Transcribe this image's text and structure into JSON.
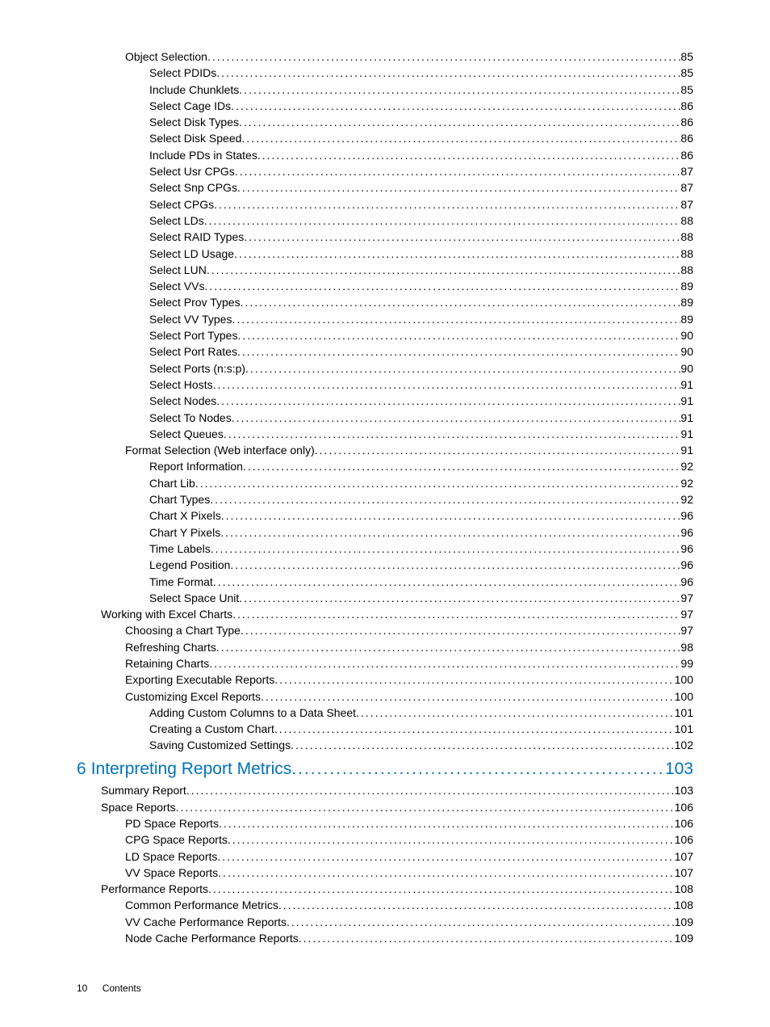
{
  "colors": {
    "link_color": "#0073ba",
    "text_color": "#000000",
    "background": "#ffffff"
  },
  "typography": {
    "body_font": "Arial, Helvetica, sans-serif",
    "entry_fontsize": 14,
    "chapter_fontsize": 21,
    "footer_fontsize": 12,
    "line_height": 1.45,
    "weight": 300
  },
  "toc": {
    "entries": [
      {
        "label": "Object Selection",
        "page": "85",
        "indent": 2,
        "type": "item"
      },
      {
        "label": "Select PDIDs",
        "page": "85",
        "indent": 3,
        "type": "item"
      },
      {
        "label": "Include Chunklets",
        "page": "85",
        "indent": 3,
        "type": "item"
      },
      {
        "label": "Select Cage IDs",
        "page": "86",
        "indent": 3,
        "type": "item"
      },
      {
        "label": "Select Disk Types",
        "page": "86",
        "indent": 3,
        "type": "item"
      },
      {
        "label": "Select Disk Speed",
        "page": "86",
        "indent": 3,
        "type": "item"
      },
      {
        "label": "Include PDs in States",
        "page": "86",
        "indent": 3,
        "type": "item"
      },
      {
        "label": "Select Usr CPGs",
        "page": "87",
        "indent": 3,
        "type": "item"
      },
      {
        "label": "Select Snp CPGs",
        "page": "87",
        "indent": 3,
        "type": "item"
      },
      {
        "label": "Select CPGs",
        "page": "87",
        "indent": 3,
        "type": "item"
      },
      {
        "label": "Select LDs",
        "page": "88",
        "indent": 3,
        "type": "item"
      },
      {
        "label": "Select RAID Types",
        "page": "88",
        "indent": 3,
        "type": "item"
      },
      {
        "label": "Select LD Usage",
        "page": "88",
        "indent": 3,
        "type": "item"
      },
      {
        "label": "Select LUN",
        "page": "88",
        "indent": 3,
        "type": "item"
      },
      {
        "label": "Select VVs",
        "page": "89",
        "indent": 3,
        "type": "item"
      },
      {
        "label": "Select Prov Types",
        "page": "89",
        "indent": 3,
        "type": "item"
      },
      {
        "label": "Select VV Types",
        "page": "89",
        "indent": 3,
        "type": "item"
      },
      {
        "label": "Select Port Types",
        "page": "90",
        "indent": 3,
        "type": "item"
      },
      {
        "label": "Select Port Rates",
        "page": "90",
        "indent": 3,
        "type": "item"
      },
      {
        "label": "Select Ports (n:s:p)",
        "page": "90",
        "indent": 3,
        "type": "item"
      },
      {
        "label": "Select Hosts",
        "page": "91",
        "indent": 3,
        "type": "item"
      },
      {
        "label": "Select Nodes",
        "page": "91",
        "indent": 3,
        "type": "item"
      },
      {
        "label": "Select To Nodes",
        "page": "91",
        "indent": 3,
        "type": "item"
      },
      {
        "label": "Select Queues",
        "page": "91",
        "indent": 3,
        "type": "item"
      },
      {
        "label": "Format Selection (Web interface only)",
        "page": "91",
        "indent": 2,
        "type": "item"
      },
      {
        "label": "Report Information",
        "page": "92",
        "indent": 3,
        "type": "item"
      },
      {
        "label": "Chart Lib",
        "page": "92",
        "indent": 3,
        "type": "item"
      },
      {
        "label": "Chart Types",
        "page": "92",
        "indent": 3,
        "type": "item"
      },
      {
        "label": "Chart X Pixels",
        "page": "96",
        "indent": 3,
        "type": "item"
      },
      {
        "label": "Chart Y Pixels",
        "page": "96",
        "indent": 3,
        "type": "item"
      },
      {
        "label": "Time Labels",
        "page": "96",
        "indent": 3,
        "type": "item"
      },
      {
        "label": "Legend Position",
        "page": "96",
        "indent": 3,
        "type": "item"
      },
      {
        "label": "Time Format",
        "page": "96",
        "indent": 3,
        "type": "item"
      },
      {
        "label": "Select Space Unit",
        "page": "97",
        "indent": 3,
        "type": "item"
      },
      {
        "label": "Working with Excel Charts",
        "page": "97",
        "indent": 1,
        "type": "item"
      },
      {
        "label": "Choosing a Chart Type",
        "page": "97",
        "indent": 2,
        "type": "item"
      },
      {
        "label": "Refreshing Charts",
        "page": "98",
        "indent": 2,
        "type": "item"
      },
      {
        "label": "Retaining Charts",
        "page": "99",
        "indent": 2,
        "type": "item"
      },
      {
        "label": "Exporting Executable Reports",
        "page": "100",
        "indent": 2,
        "type": "item"
      },
      {
        "label": "Customizing Excel Reports",
        "page": "100",
        "indent": 2,
        "type": "item"
      },
      {
        "label": "Adding Custom Columns to a Data Sheet",
        "page": "101",
        "indent": 3,
        "type": "item"
      },
      {
        "label": "Creating a Custom Chart",
        "page": "101",
        "indent": 3,
        "type": "item"
      },
      {
        "label": "Saving Customized Settings",
        "page": "102",
        "indent": 3,
        "type": "item"
      },
      {
        "num": "6",
        "label": "Interpreting Report Metrics",
        "page": "103",
        "indent": 0,
        "type": "chapter"
      },
      {
        "label": "Summary Report",
        "page": "103",
        "indent": 1,
        "type": "item"
      },
      {
        "label": "Space Reports",
        "page": "106",
        "indent": 1,
        "type": "item"
      },
      {
        "label": "PD Space Reports",
        "page": "106",
        "indent": 2,
        "type": "item"
      },
      {
        "label": "CPG Space Reports",
        "page": "106",
        "indent": 2,
        "type": "item"
      },
      {
        "label": "LD Space Reports",
        "page": "107",
        "indent": 2,
        "type": "item"
      },
      {
        "label": "VV Space Reports",
        "page": "107",
        "indent": 2,
        "type": "item"
      },
      {
        "label": "Performance Reports",
        "page": "108",
        "indent": 1,
        "type": "item"
      },
      {
        "label": "Common Performance Metrics",
        "page": "108",
        "indent": 2,
        "type": "item"
      },
      {
        "label": "VV Cache Performance Reports",
        "page": "109",
        "indent": 2,
        "type": "item"
      },
      {
        "label": "Node Cache Performance Reports",
        "page": "109",
        "indent": 2,
        "type": "item"
      }
    ]
  },
  "footer": {
    "page_number": "10",
    "section": "Contents"
  }
}
